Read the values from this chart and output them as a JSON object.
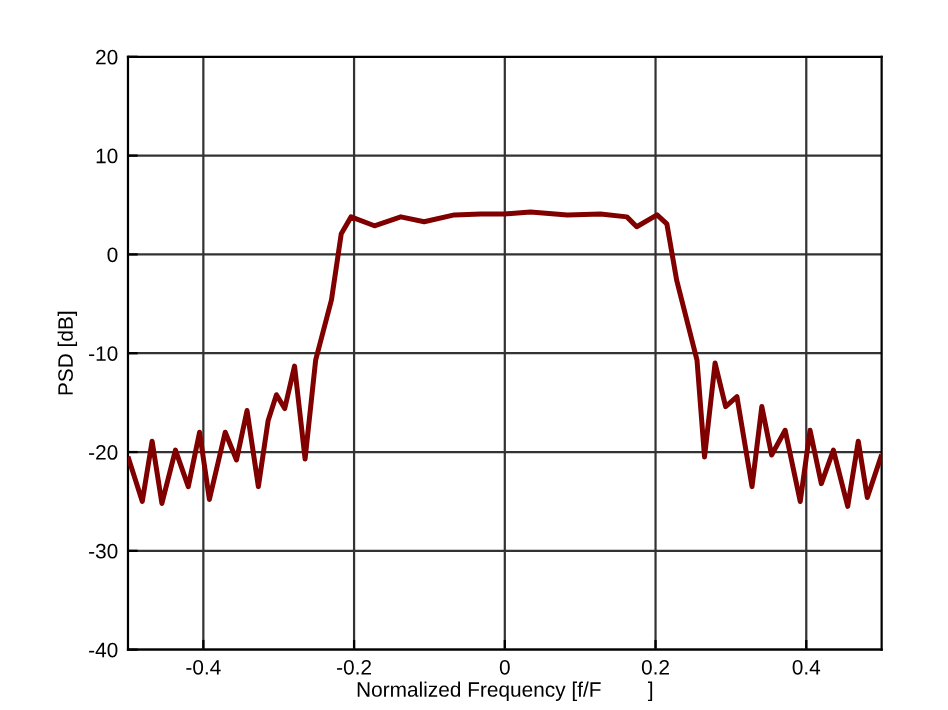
{
  "chart_data": {
    "type": "line",
    "xlabel": "Normalized Frequency [f/F        ]",
    "ylabel": "PSD [dB]",
    "xlim": [
      -0.5,
      0.5
    ],
    "ylim": [
      -40,
      20
    ],
    "xticks": [
      -0.4,
      -0.2,
      0,
      0.2,
      0.4
    ],
    "yticks": [
      -40,
      -30,
      -20,
      -10,
      0,
      10,
      20
    ],
    "grid": true,
    "line_style": "solid",
    "marker": "none",
    "series": [
      {
        "color": "#800000",
        "x": [
          -0.499,
          -0.481,
          -0.468,
          -0.455,
          -0.437,
          -0.42,
          -0.405,
          -0.392,
          -0.371,
          -0.356,
          -0.342,
          -0.327,
          -0.314,
          -0.303,
          -0.292,
          -0.279,
          -0.265,
          -0.251,
          -0.23,
          -0.217,
          -0.204,
          -0.173,
          -0.138,
          -0.107,
          -0.067,
          -0.032,
          0,
          0.034,
          0.083,
          0.127,
          0.162,
          0.175,
          0.202,
          0.215,
          0.228,
          0.255,
          0.265,
          0.279,
          0.293,
          0.308,
          0.328,
          0.341,
          0.354,
          0.372,
          0.392,
          0.405,
          0.42,
          0.436,
          0.455,
          0.469,
          0.481,
          0.499
        ],
        "values": [
          -20.7,
          -25.0,
          -18.9,
          -25.2,
          -19.8,
          -23.5,
          -18.0,
          -24.8,
          -18.0,
          -20.8,
          -15.8,
          -23.5,
          -16.8,
          -14.2,
          -15.6,
          -11.3,
          -20.7,
          -10.7,
          -4.6,
          2.1,
          3.8,
          2.9,
          3.8,
          3.3,
          4.0,
          4.1,
          4.1,
          4.3,
          4.0,
          4.1,
          3.8,
          2.8,
          4.0,
          3.1,
          -2.6,
          -10.7,
          -20.5,
          -11.0,
          -15.4,
          -14.4,
          -23.5,
          -15.4,
          -20.3,
          -17.8,
          -25.0,
          -17.8,
          -23.2,
          -19.8,
          -25.5,
          -18.9,
          -24.6,
          -20.5
        ]
      }
    ]
  }
}
